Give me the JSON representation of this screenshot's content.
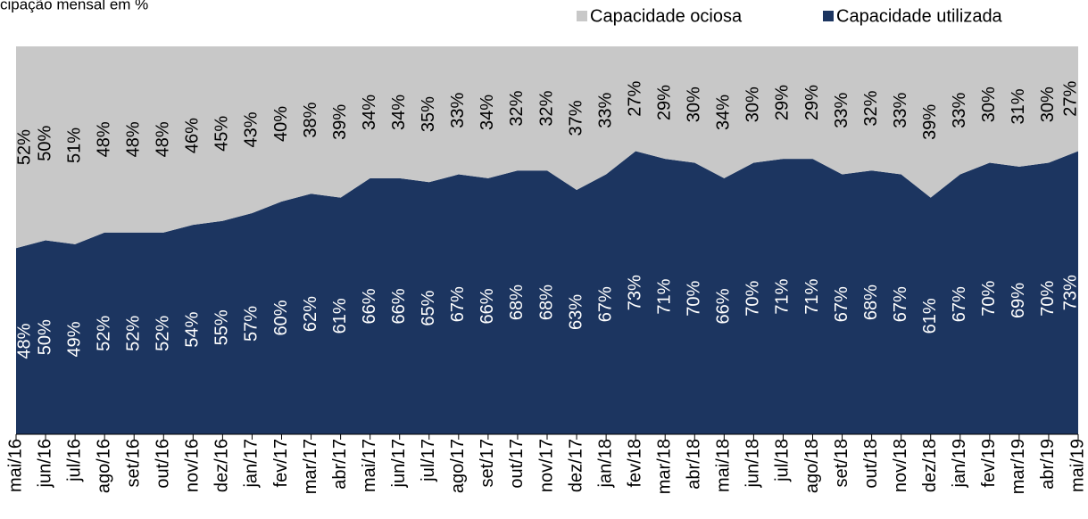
{
  "chart_data": {
    "type": "stacked_area",
    "title": "cipação mensal em %",
    "categories": [
      "mai/16",
      "jun/16",
      "jul/16",
      "ago/16",
      "set/16",
      "out/16",
      "nov/16",
      "dez/16",
      "jan/17",
      "fev/17",
      "mar/17",
      "abr/17",
      "mai/17",
      "jun/17",
      "jul/17",
      "ago/17",
      "set/17",
      "out/17",
      "nov/17",
      "dez/17",
      "jan/18",
      "fev/18",
      "mar/18",
      "abr/18",
      "mai/18",
      "jun/18",
      "jul/18",
      "ago/18",
      "set/18",
      "out/18",
      "nov/18",
      "dez/18",
      "jan/19",
      "fev/19",
      "mar/19",
      "abr/19",
      "mai/19"
    ],
    "series": [
      {
        "name": "Capacidade utilizada",
        "color": "#1c3560",
        "label_color": "#ffffff",
        "values": [
          48,
          50,
          49,
          52,
          52,
          52,
          54,
          55,
          57,
          60,
          62,
          61,
          66,
          66,
          65,
          67,
          66,
          68,
          68,
          63,
          67,
          73,
          71,
          70,
          66,
          70,
          71,
          71,
          67,
          68,
          67,
          61,
          67,
          70,
          69,
          70,
          73
        ],
        "value_labels": [
          "48%",
          "50%",
          "49%",
          "52%",
          "52%",
          "52%",
          "54%",
          "55%",
          "57%",
          "60%",
          "62%",
          "61%",
          "66%",
          "66%",
          "65%",
          "67%",
          "66%",
          "68%",
          "68%",
          "63%",
          "67%",
          "73%",
          "71%",
          "70%",
          "66%",
          "70%",
          "71%",
          "71%",
          "67%",
          "68%",
          "67%",
          "61%",
          "67%",
          "70%",
          "69%",
          "70%",
          "73%"
        ]
      },
      {
        "name": "Capacidade ociosa",
        "color": "#c8c8c8",
        "label_color": "#000000",
        "values": [
          52,
          50,
          51,
          48,
          48,
          48,
          46,
          45,
          43,
          40,
          38,
          39,
          34,
          34,
          35,
          33,
          34,
          32,
          32,
          37,
          33,
          27,
          29,
          30,
          34,
          30,
          29,
          29,
          33,
          32,
          33,
          39,
          33,
          30,
          31,
          30,
          27
        ],
        "value_labels": [
          "52%",
          "50%",
          "51%",
          "48%",
          "48%",
          "48%",
          "46%",
          "45%",
          "43%",
          "40%",
          "38%",
          "39%",
          "34%",
          "34%",
          "35%",
          "33%",
          "34%",
          "32%",
          "32%",
          "37%",
          "33%",
          "27%",
          "29%",
          "30%",
          "34%",
          "30%",
          "29%",
          "29%",
          "33%",
          "32%",
          "33%",
          "39%",
          "33%",
          "30%",
          "31%",
          "30%",
          "27%"
        ]
      }
    ],
    "ylim": [
      0,
      100
    ]
  }
}
